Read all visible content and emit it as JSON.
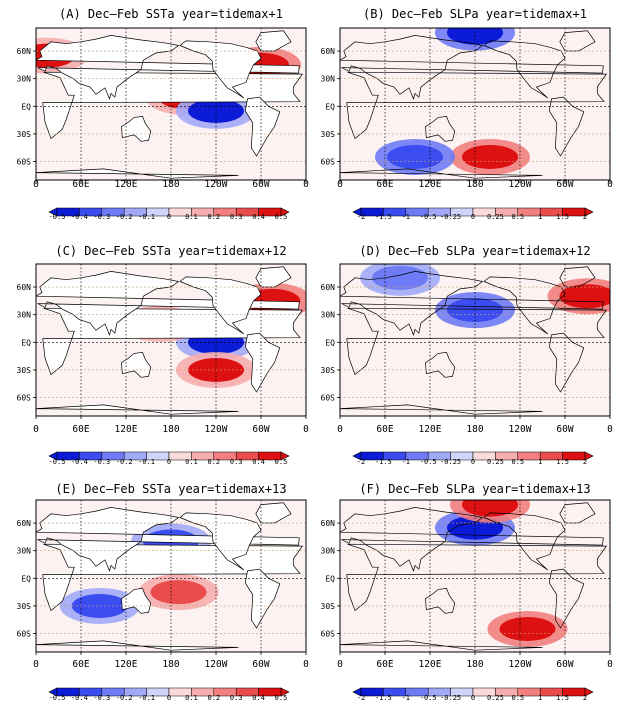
{
  "figure": {
    "panels": [
      {
        "id": "A",
        "title": "(A) Dec–Feb SSTa year=tidemax+1",
        "field": "SSTa"
      },
      {
        "id": "B",
        "title": "(B) Dec–Feb SLPa year=tidemax+1",
        "field": "SLPa"
      },
      {
        "id": "C",
        "title": "(C) Dec–Feb SSTa year=tidemax+12",
        "field": "SSTa"
      },
      {
        "id": "D",
        "title": "(D) Dec–Feb SLPa year=tidemax+12",
        "field": "SLPa"
      },
      {
        "id": "E",
        "title": "(E) Dec–Feb SSTa year=tidemax+13",
        "field": "SSTa"
      },
      {
        "id": "F",
        "title": "(F) Dec–Feb SLPa year=tidemax+13",
        "field": "SLPa"
      }
    ],
    "xtick_labels": [
      "0",
      "60E",
      "120E",
      "180",
      "120W",
      "60W",
      "0"
    ],
    "ytick_labels": [
      "60N",
      "30N",
      "EQ",
      "30S",
      "60S"
    ],
    "colorbars": {
      "SSTa": [
        "-0.5",
        "-0.4",
        "-0.3",
        "-0.2",
        "-0.1",
        "0",
        "0.1",
        "0.2",
        "0.3",
        "0.4",
        "0.5"
      ],
      "SLPa": [
        "-2",
        "-1.5",
        "-1",
        "-0.5",
        "-0.25",
        "0",
        "0.25",
        "0.5",
        "1",
        "1.5",
        "2"
      ]
    }
  },
  "chart_data": [
    {
      "type": "heatmap",
      "panel": "A",
      "title": "(A) Dec–Feb SSTa year=tidemax+1",
      "x_ticks": [
        "0",
        "60E",
        "120E",
        "180",
        "120W",
        "60W",
        "0"
      ],
      "y_ticks": [
        "60N",
        "30N",
        "EQ",
        "30S",
        "60S"
      ],
      "colorbar_levels": [
        -0.5,
        -0.4,
        -0.3,
        -0.2,
        -0.1,
        0,
        0.1,
        0.2,
        0.3,
        0.4,
        0.5
      ],
      "features": [
        {
          "lon": 200,
          "lat": 10,
          "value": 0.4
        },
        {
          "lon": 240,
          "lat": -5,
          "value": -0.5
        },
        {
          "lon": 15,
          "lat": 55,
          "value": 0.4
        },
        {
          "lon": 300,
          "lat": 45,
          "value": 0.5
        }
      ]
    },
    {
      "type": "heatmap",
      "panel": "B",
      "title": "(B) Dec–Feb SLPa year=tidemax+1",
      "x_ticks": [
        "0",
        "60E",
        "120E",
        "180",
        "120W",
        "60W",
        "0"
      ],
      "y_ticks": [
        "60N",
        "30N",
        "EQ",
        "30S",
        "60S"
      ],
      "colorbar_levels": [
        -2,
        -1.5,
        -1,
        -0.5,
        -0.25,
        0,
        0.25,
        0.5,
        1,
        1.5,
        2
      ],
      "features": [
        {
          "lon": 180,
          "lat": 80,
          "value": -2
        },
        {
          "lon": 200,
          "lat": -55,
          "value": 1.5
        },
        {
          "lon": 100,
          "lat": -55,
          "value": -1.5
        }
      ]
    },
    {
      "type": "heatmap",
      "panel": "C",
      "title": "(C) Dec–Feb SSTa year=tidemax+12",
      "x_ticks": [
        "0",
        "60E",
        "120E",
        "180",
        "120W",
        "60W",
        "0"
      ],
      "y_ticks": [
        "60N",
        "30N",
        "EQ",
        "30S",
        "60S"
      ],
      "colorbar_levels": [
        -0.5,
        -0.4,
        -0.3,
        -0.2,
        -0.1,
        0,
        0.1,
        0.2,
        0.3,
        0.4,
        0.5
      ],
      "features": [
        {
          "lon": 240,
          "lat": 0,
          "value": -0.5
        },
        {
          "lon": 315,
          "lat": 45,
          "value": 0.5
        },
        {
          "lon": 165,
          "lat": 20,
          "value": 0.3
        },
        {
          "lon": 240,
          "lat": -30,
          "value": 0.4
        }
      ]
    },
    {
      "type": "heatmap",
      "panel": "D",
      "title": "(D) Dec–Feb SLPa year=tidemax+12",
      "x_ticks": [
        "0",
        "60E",
        "120E",
        "180",
        "120W",
        "60W",
        "0"
      ],
      "y_ticks": [
        "60N",
        "30N",
        "EQ",
        "30S",
        "60S"
      ],
      "colorbar_levels": [
        -2,
        -1.5,
        -1,
        -0.5,
        -0.25,
        0,
        0.25,
        0.5,
        1,
        1.5,
        2
      ],
      "features": [
        {
          "lon": 180,
          "lat": 35,
          "value": -1.5
        },
        {
          "lon": 330,
          "lat": 50,
          "value": 1.5
        },
        {
          "lon": 80,
          "lat": 70,
          "value": -1
        }
      ]
    },
    {
      "type": "heatmap",
      "panel": "E",
      "title": "(E) Dec–Feb SSTa year=tidemax+13",
      "x_ticks": [
        "0",
        "60E",
        "120E",
        "180",
        "120W",
        "60W",
        "0"
      ],
      "y_ticks": [
        "60N",
        "30N",
        "EQ",
        "30S",
        "60S"
      ],
      "colorbar_levels": [
        -0.5,
        -0.4,
        -0.3,
        -0.2,
        -0.1,
        0,
        0.1,
        0.2,
        0.3,
        0.4,
        0.5
      ],
      "features": [
        {
          "lon": 180,
          "lat": 40,
          "value": -0.4
        },
        {
          "lon": 85,
          "lat": -30,
          "value": -0.4
        },
        {
          "lon": 190,
          "lat": -15,
          "value": 0.3
        }
      ]
    },
    {
      "type": "heatmap",
      "panel": "F",
      "title": "(F) Dec–Feb SLPa year=tidemax+13",
      "x_ticks": [
        "0",
        "60E",
        "120E",
        "180",
        "120W",
        "60W",
        "0"
      ],
      "y_ticks": [
        "60N",
        "30N",
        "EQ",
        "30S",
        "60S"
      ],
      "colorbar_levels": [
        -2,
        -1.5,
        -1,
        -0.5,
        -0.25,
        0,
        0.25,
        0.5,
        1,
        1.5,
        2
      ],
      "features": [
        {
          "lon": 180,
          "lat": 55,
          "value": -2
        },
        {
          "lon": 200,
          "lat": 80,
          "value": 1.5
        },
        {
          "lon": 250,
          "lat": -55,
          "value": 2
        }
      ]
    }
  ]
}
